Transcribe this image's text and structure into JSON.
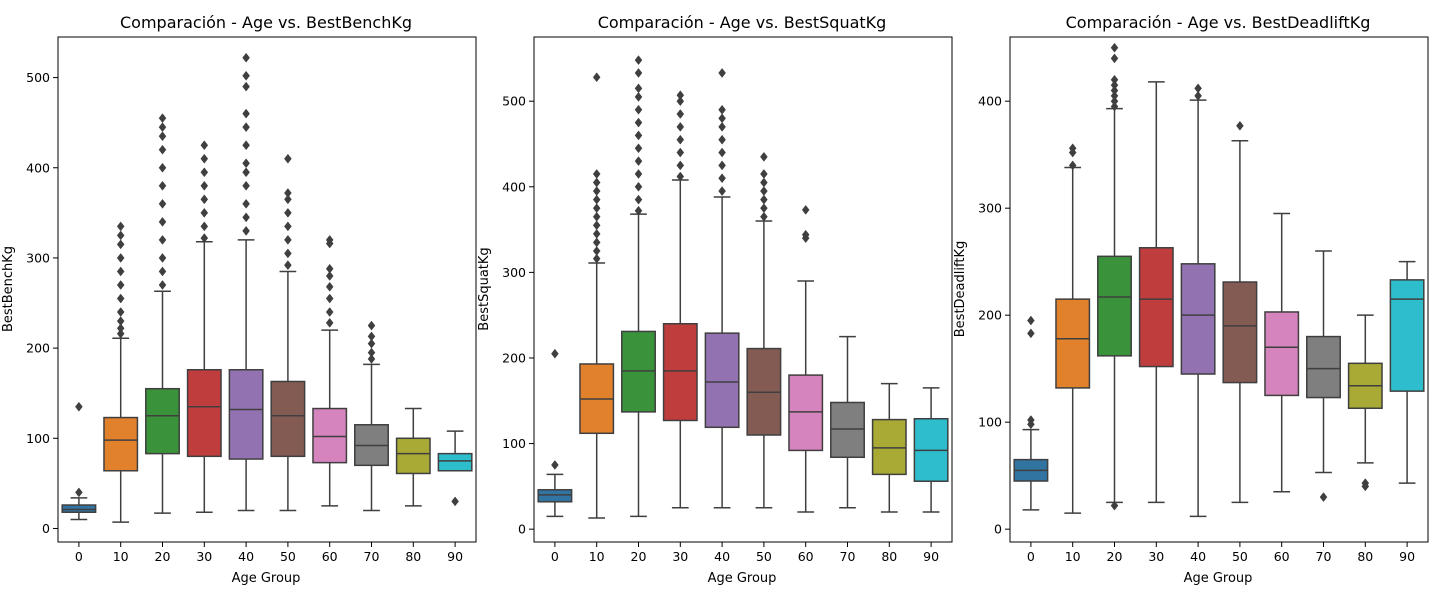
{
  "chart_data": [
    {
      "type": "box",
      "title": "Comparación - Age vs. BestBenchKg",
      "xlabel": "Age Group",
      "ylabel": "BestBenchKg",
      "ylim": [
        -15,
        545
      ],
      "yticks": [
        0,
        100,
        200,
        300,
        400,
        500
      ],
      "categories": [
        "0",
        "10",
        "20",
        "30",
        "40",
        "50",
        "60",
        "70",
        "80",
        "90"
      ],
      "boxes": [
        {
          "min": 10,
          "q1": 18,
          "median": 21,
          "q3": 26,
          "max": 34,
          "outliers": [
            40,
            135
          ]
        },
        {
          "min": 7,
          "q1": 64,
          "median": 98,
          "q3": 123,
          "max": 211,
          "outliers": [
            216,
            222,
            230,
            240,
            255,
            270,
            285,
            300,
            315,
            325,
            335
          ]
        },
        {
          "min": 17,
          "q1": 83,
          "median": 125,
          "q3": 155,
          "max": 263,
          "outliers": [
            270,
            285,
            300,
            320,
            340,
            360,
            380,
            400,
            420,
            435,
            445,
            455
          ]
        },
        {
          "min": 18,
          "q1": 80,
          "median": 135,
          "q3": 176,
          "max": 318,
          "outliers": [
            322,
            335,
            350,
            365,
            380,
            395,
            410,
            425
          ]
        },
        {
          "min": 20,
          "q1": 77,
          "median": 132,
          "q3": 176,
          "max": 320,
          "outliers": [
            330,
            345,
            360,
            380,
            395,
            405,
            425,
            445,
            460,
            490,
            502,
            522
          ]
        },
        {
          "min": 20,
          "q1": 80,
          "median": 125,
          "q3": 163,
          "max": 285,
          "outliers": [
            292,
            305,
            320,
            335,
            350,
            365,
            372,
            410
          ]
        },
        {
          "min": 25,
          "q1": 73,
          "median": 102,
          "q3": 133,
          "max": 220,
          "outliers": [
            228,
            240,
            255,
            268,
            280,
            288,
            316,
            320
          ]
        },
        {
          "min": 20,
          "q1": 70,
          "median": 92,
          "q3": 115,
          "max": 182,
          "outliers": [
            188,
            195,
            205,
            213,
            225
          ]
        },
        {
          "min": 25,
          "q1": 61,
          "median": 83,
          "q3": 100,
          "max": 133,
          "outliers": []
        },
        {
          "min": 64,
          "q1": 64,
          "median": 75,
          "q3": 83,
          "max": 108,
          "outliers": [
            30
          ]
        }
      ]
    },
    {
      "type": "box",
      "title": "Comparación - Age vs. BestSquatKg",
      "xlabel": "Age Group",
      "ylabel": "BestSquatKg",
      "ylim": [
        -15,
        575
      ],
      "yticks": [
        0,
        100,
        200,
        300,
        400,
        500
      ],
      "categories": [
        "0",
        "10",
        "20",
        "30",
        "40",
        "50",
        "60",
        "70",
        "80",
        "90"
      ],
      "boxes": [
        {
          "min": 15,
          "q1": 32,
          "median": 40,
          "q3": 46,
          "max": 64,
          "outliers": [
            75,
            205
          ]
        },
        {
          "min": 13,
          "q1": 112,
          "median": 152,
          "q3": 193,
          "max": 311,
          "outliers": [
            316,
            325,
            335,
            345,
            355,
            365,
            375,
            385,
            395,
            405,
            415,
            528
          ]
        },
        {
          "min": 15,
          "q1": 137,
          "median": 185,
          "q3": 231,
          "max": 368,
          "outliers": [
            372,
            385,
            400,
            415,
            430,
            445,
            460,
            475,
            490,
            505,
            515,
            533,
            548
          ]
        },
        {
          "min": 25,
          "q1": 127,
          "median": 185,
          "q3": 240,
          "max": 408,
          "outliers": [
            412,
            425,
            440,
            455,
            470,
            485,
            500,
            507
          ]
        },
        {
          "min": 25,
          "q1": 119,
          "median": 172,
          "q3": 229,
          "max": 388,
          "outliers": [
            395,
            410,
            425,
            440,
            455,
            470,
            480,
            490,
            533
          ]
        },
        {
          "min": 25,
          "q1": 110,
          "median": 160,
          "q3": 211,
          "max": 360,
          "outliers": [
            365,
            375,
            385,
            395,
            405,
            415,
            435
          ]
        },
        {
          "min": 20,
          "q1": 92,
          "median": 137,
          "q3": 180,
          "max": 290,
          "outliers": [
            340,
            344,
            373
          ]
        },
        {
          "min": 25,
          "q1": 84,
          "median": 117,
          "q3": 148,
          "max": 225,
          "outliers": []
        },
        {
          "min": 20,
          "q1": 64,
          "median": 95,
          "q3": 128,
          "max": 170,
          "outliers": []
        },
        {
          "min": 20,
          "q1": 56,
          "median": 92,
          "q3": 129,
          "max": 165,
          "outliers": []
        }
      ]
    },
    {
      "type": "box",
      "title": "Comparación - Age vs. BestDeadliftKg",
      "xlabel": "Age Group",
      "ylabel": "BestDeadliftKg",
      "ylim": [
        -12,
        460
      ],
      "yticks": [
        0,
        100,
        200,
        300,
        400
      ],
      "categories": [
        "0",
        "10",
        "20",
        "30",
        "40",
        "50",
        "60",
        "70",
        "80",
        "90"
      ],
      "boxes": [
        {
          "min": 18,
          "q1": 45,
          "median": 55,
          "q3": 65,
          "max": 93,
          "outliers": [
            98,
            102,
            183,
            195
          ]
        },
        {
          "min": 15,
          "q1": 132,
          "median": 178,
          "q3": 215,
          "max": 338,
          "outliers": [
            340,
            352,
            356
          ]
        },
        {
          "min": 25,
          "q1": 162,
          "median": 217,
          "q3": 255,
          "max": 393,
          "outliers": [
            22,
            395,
            400,
            405,
            410,
            415,
            420,
            440,
            450
          ]
        },
        {
          "min": 25,
          "q1": 152,
          "median": 215,
          "q3": 263,
          "max": 418,
          "outliers": []
        },
        {
          "min": 12,
          "q1": 145,
          "median": 200,
          "q3": 248,
          "max": 401,
          "outliers": [
            405,
            412
          ]
        },
        {
          "min": 25,
          "q1": 137,
          "median": 190,
          "q3": 231,
          "max": 363,
          "outliers": [
            377
          ]
        },
        {
          "min": 35,
          "q1": 125,
          "median": 170,
          "q3": 203,
          "max": 295,
          "outliers": []
        },
        {
          "min": 53,
          "q1": 123,
          "median": 150,
          "q3": 180,
          "max": 260,
          "outliers": [
            30
          ]
        },
        {
          "min": 62,
          "q1": 113,
          "median": 134,
          "q3": 155,
          "max": 200,
          "outliers": [
            40,
            43
          ]
        },
        {
          "min": 43,
          "q1": 129,
          "median": 215,
          "q3": 233,
          "max": 250,
          "outliers": []
        }
      ]
    }
  ],
  "colors": {
    "boxes": [
      "#3274a1",
      "#e1812c",
      "#3a923a",
      "#c03d3e",
      "#9372b2",
      "#845b53",
      "#d684bd",
      "#7f7f7f",
      "#a9aa35",
      "#2ebdcc"
    ],
    "line": "#3f3f3f",
    "axis": "#000000"
  }
}
